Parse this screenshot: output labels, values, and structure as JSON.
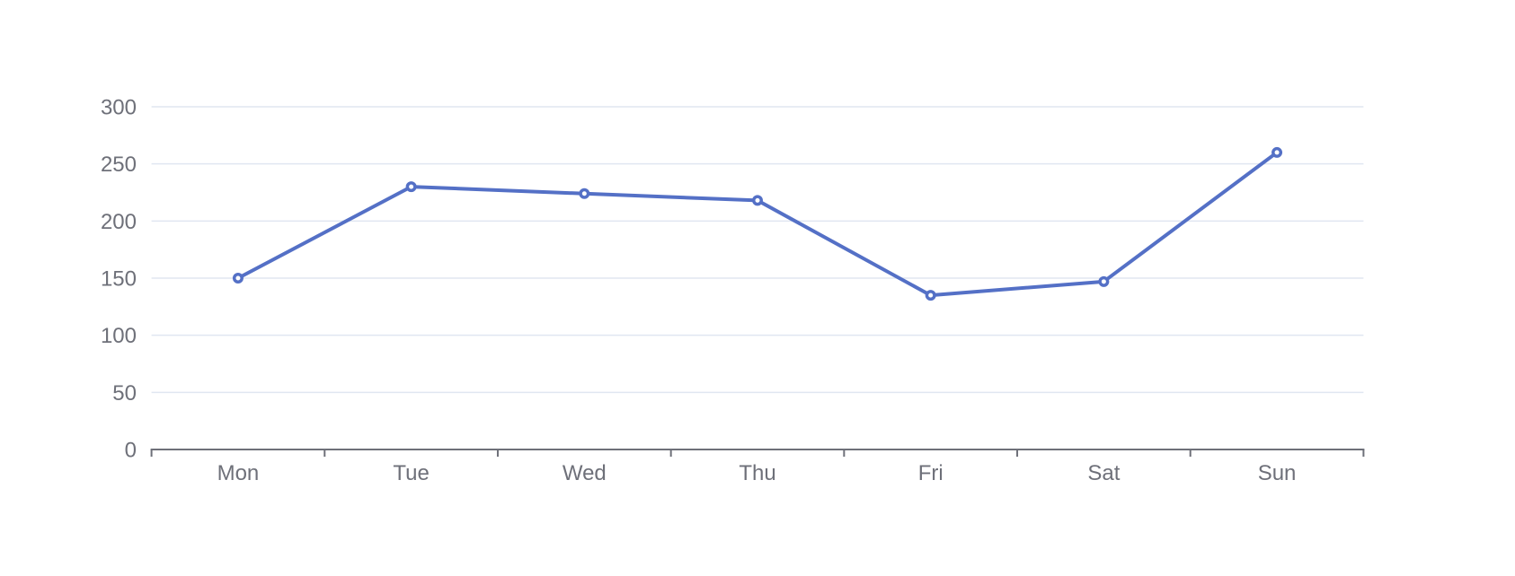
{
  "chart_data": {
    "type": "line",
    "title": "",
    "categories": [
      "Mon",
      "Tue",
      "Wed",
      "Thu",
      "Fri",
      "Sat",
      "Sun"
    ],
    "values": [
      150,
      230,
      224,
      218,
      135,
      147,
      260
    ],
    "xlabel": "",
    "ylabel": "",
    "ylim": [
      0,
      300
    ],
    "yticks": [
      0,
      50,
      100,
      150,
      200,
      250,
      300
    ],
    "grid": true,
    "legend": false,
    "legend_position": "none",
    "marker": "empty-circle",
    "colors": {
      "line": "#5470c6",
      "marker_fill": "#ffffff",
      "gridline": "#e0e6f1",
      "axis": "#6e7079",
      "label": "#6e7079",
      "background": "#ffffff"
    }
  }
}
